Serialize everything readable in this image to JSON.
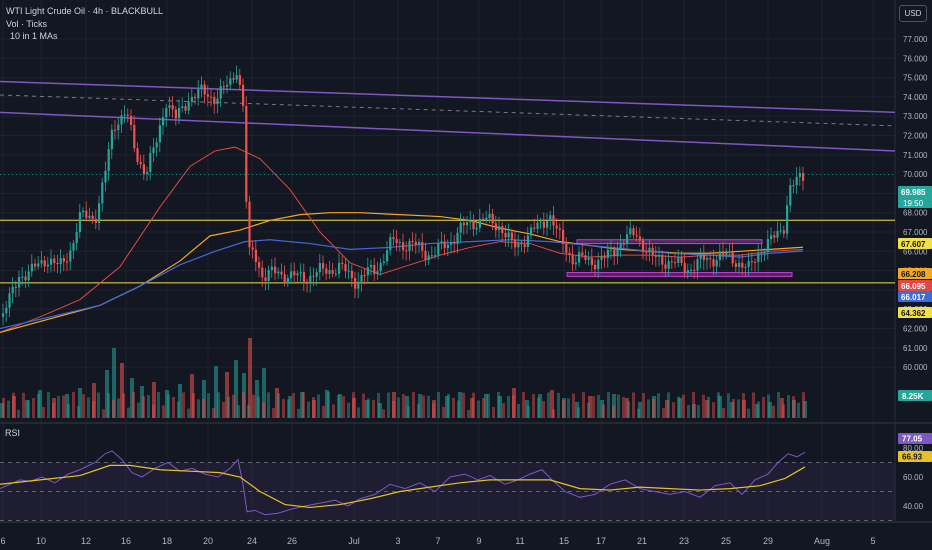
{
  "header": {
    "symbol": "WTI Light Crude Oil · 4h · BLACKBULL",
    "volume_label": "Vol · Ticks",
    "ma_label": "10 in 1 MAs",
    "rsi_label": "RSI",
    "currency": "USD"
  },
  "colors": {
    "background": "#131722",
    "up": "#26a69a",
    "down": "#ef5350",
    "trend": "#7e57c2",
    "level": "#f2e04a",
    "ma_red": "#e04848",
    "ma_orange": "#f5a623",
    "ma_blue": "#3f6bd8",
    "box": "#c040d0",
    "rsi": "#7e57c2",
    "rsi_ma": "#e6c229"
  },
  "chart_data": {
    "type": "candlestick",
    "price_axis": [
      "77.000",
      "76.000",
      "75.000",
      "74.000",
      "73.000",
      "72.000",
      "71.000",
      "70.000",
      "69.000",
      "68.000",
      "67.000",
      "66.000",
      "65.000",
      "64.000",
      "63.000",
      "62.000",
      "61.000",
      "60.000"
    ],
    "rsi_axis": [
      "80.00",
      "60.00",
      "40.00"
    ],
    "x_ticks": [
      "6",
      "10",
      "12",
      "16",
      "18",
      "20",
      "24",
      "26",
      "Jul",
      "3",
      "7",
      "9",
      "11",
      "15",
      "17",
      "21",
      "23",
      "25",
      "29",
      "Aug",
      "5"
    ],
    "price_range": [
      60,
      77.7
    ],
    "rsi_range": [
      32,
      82
    ],
    "path": [
      [
        0,
        62.6
      ],
      [
        10,
        63.6
      ],
      [
        18,
        64.8
      ],
      [
        30,
        64.9
      ],
      [
        45,
        65.7
      ],
      [
        58,
        65.1
      ],
      [
        70,
        66.2
      ],
      [
        80,
        67.8
      ],
      [
        96,
        67.9
      ],
      [
        106,
        70.5
      ],
      [
        112,
        72.6
      ],
      [
        125,
        73.2
      ],
      [
        135,
        71.0
      ],
      [
        145,
        70.1
      ],
      [
        155,
        71.5
      ],
      [
        165,
        73.9
      ],
      [
        175,
        72.8
      ],
      [
        188,
        74.0
      ],
      [
        200,
        74.2
      ],
      [
        215,
        74.0
      ],
      [
        228,
        74.6
      ],
      [
        236,
        75.6
      ],
      [
        242,
        73.5
      ],
      [
        247,
        65.7
      ],
      [
        253,
        66.0
      ],
      [
        262,
        64.7
      ],
      [
        278,
        64.9
      ],
      [
        298,
        64.6
      ],
      [
        318,
        64.9
      ],
      [
        337,
        65.2
      ],
      [
        355,
        64.5
      ],
      [
        375,
        65.1
      ],
      [
        392,
        66.5
      ],
      [
        412,
        66.3
      ],
      [
        432,
        65.8
      ],
      [
        452,
        66.7
      ],
      [
        468,
        67.5
      ],
      [
        483,
        67.6
      ],
      [
        498,
        67.4
      ],
      [
        512,
        66.2
      ],
      [
        527,
        66.8
      ],
      [
        540,
        67.4
      ],
      [
        548,
        68.0
      ],
      [
        557,
        66.8
      ],
      [
        572,
        65.6
      ],
      [
        590,
        65.5
      ],
      [
        605,
        65.6
      ],
      [
        620,
        66.5
      ],
      [
        635,
        66.9
      ],
      [
        652,
        65.6
      ],
      [
        668,
        65.5
      ],
      [
        685,
        65.1
      ],
      [
        702,
        65.5
      ],
      [
        720,
        65.8
      ],
      [
        737,
        65.5
      ],
      [
        748,
        65.0
      ],
      [
        760,
        66.2
      ],
      [
        775,
        66.7
      ],
      [
        783,
        67.4
      ],
      [
        788,
        69.3
      ],
      [
        797,
        69.6
      ],
      [
        805,
        69.985
      ]
    ],
    "volume": [
      {
        "x": 0,
        "v": 15
      },
      {
        "x": 12,
        "v": 22
      },
      {
        "x": 25,
        "v": 18
      },
      {
        "x": 38,
        "v": 28
      },
      {
        "x": 52,
        "v": 20
      },
      {
        "x": 65,
        "v": 24
      },
      {
        "x": 78,
        "v": 30
      },
      {
        "x": 92,
        "v": 35
      },
      {
        "x": 105,
        "v": 48
      },
      {
        "x": 112,
        "v": 70
      },
      {
        "x": 120,
        "v": 55
      },
      {
        "x": 130,
        "v": 40
      },
      {
        "x": 140,
        "v": 32
      },
      {
        "x": 152,
        "v": 36
      },
      {
        "x": 165,
        "v": 28
      },
      {
        "x": 178,
        "v": 34
      },
      {
        "x": 190,
        "v": 44
      },
      {
        "x": 202,
        "v": 38
      },
      {
        "x": 214,
        "v": 52
      },
      {
        "x": 225,
        "v": 46
      },
      {
        "x": 234,
        "v": 58
      },
      {
        "x": 242,
        "v": 45
      },
      {
        "x": 248,
        "v": 80
      },
      {
        "x": 255,
        "v": 38
      },
      {
        "x": 262,
        "v": 50
      },
      {
        "x": 275,
        "v": 30
      },
      {
        "x": 288,
        "v": 22
      },
      {
        "x": 300,
        "v": 26
      },
      {
        "x": 312,
        "v": 18
      },
      {
        "x": 325,
        "v": 28
      },
      {
        "x": 338,
        "v": 24
      },
      {
        "x": 352,
        "v": 20
      },
      {
        "x": 365,
        "v": 18
      },
      {
        "x": 378,
        "v": 15
      },
      {
        "x": 392,
        "v": 26
      },
      {
        "x": 405,
        "v": 22
      },
      {
        "x": 418,
        "v": 24
      },
      {
        "x": 432,
        "v": 18
      },
      {
        "x": 445,
        "v": 22
      },
      {
        "x": 458,
        "v": 26
      },
      {
        "x": 470,
        "v": 20
      },
      {
        "x": 484,
        "v": 24
      },
      {
        "x": 498,
        "v": 22
      },
      {
        "x": 512,
        "v": 30
      },
      {
        "x": 525,
        "v": 18
      },
      {
        "x": 538,
        "v": 24
      },
      {
        "x": 550,
        "v": 28
      },
      {
        "x": 562,
        "v": 20
      },
      {
        "x": 575,
        "v": 16
      },
      {
        "x": 588,
        "v": 22
      },
      {
        "x": 600,
        "v": 18
      },
      {
        "x": 612,
        "v": 24
      },
      {
        "x": 625,
        "v": 20
      },
      {
        "x": 638,
        "v": 16
      },
      {
        "x": 652,
        "v": 22
      },
      {
        "x": 665,
        "v": 18
      },
      {
        "x": 678,
        "v": 20
      },
      {
        "x": 692,
        "v": 14
      },
      {
        "x": 705,
        "v": 18
      },
      {
        "x": 718,
        "v": 22
      },
      {
        "x": 730,
        "v": 16
      },
      {
        "x": 742,
        "v": 18
      },
      {
        "x": 755,
        "v": 14
      },
      {
        "x": 768,
        "v": 16
      },
      {
        "x": 780,
        "v": 20
      },
      {
        "x": 792,
        "v": 18
      },
      {
        "x": 803,
        "v": 17
      }
    ],
    "ma_red": [
      [
        0,
        61.8
      ],
      [
        40,
        62.6
      ],
      [
        80,
        63.5
      ],
      [
        120,
        65.2
      ],
      [
        160,
        68.3
      ],
      [
        190,
        70.4
      ],
      [
        215,
        71.2
      ],
      [
        235,
        71.4
      ],
      [
        260,
        70.8
      ],
      [
        290,
        69.2
      ],
      [
        320,
        67.0
      ],
      [
        350,
        65.4
      ],
      [
        380,
        64.8
      ],
      [
        410,
        65.3
      ],
      [
        440,
        65.8
      ],
      [
        470,
        66.2
      ],
      [
        500,
        66.5
      ],
      [
        530,
        66.4
      ],
      [
        560,
        65.9
      ],
      [
        590,
        65.7
      ],
      [
        620,
        65.8
      ],
      [
        650,
        65.8
      ],
      [
        680,
        65.7
      ],
      [
        710,
        65.8
      ],
      [
        740,
        65.8
      ],
      [
        770,
        66.0
      ],
      [
        803,
        66.095
      ]
    ],
    "ma_orange": [
      [
        0,
        61.8
      ],
      [
        50,
        62.5
      ],
      [
        100,
        63.2
      ],
      [
        140,
        64.2
      ],
      [
        180,
        65.5
      ],
      [
        210,
        66.8
      ],
      [
        240,
        67.1
      ],
      [
        270,
        67.6
      ],
      [
        300,
        67.9
      ],
      [
        330,
        68.0
      ],
      [
        360,
        68.0
      ],
      [
        400,
        67.9
      ],
      [
        440,
        67.8
      ],
      [
        470,
        67.6
      ],
      [
        500,
        67.2
      ],
      [
        530,
        66.9
      ],
      [
        560,
        66.5
      ],
      [
        590,
        66.3
      ],
      [
        620,
        66.1
      ],
      [
        650,
        66.0
      ],
      [
        680,
        65.9
      ],
      [
        710,
        65.9
      ],
      [
        740,
        66.0
      ],
      [
        770,
        66.1
      ],
      [
        803,
        66.208
      ]
    ],
    "ma_blue": [
      [
        0,
        62.0
      ],
      [
        50,
        62.6
      ],
      [
        100,
        63.2
      ],
      [
        140,
        64.2
      ],
      [
        180,
        65.3
      ],
      [
        215,
        66.0
      ],
      [
        245,
        66.5
      ],
      [
        270,
        66.6
      ],
      [
        310,
        66.4
      ],
      [
        350,
        66.1
      ],
      [
        390,
        66.2
      ],
      [
        430,
        66.4
      ],
      [
        470,
        66.5
      ],
      [
        510,
        66.6
      ],
      [
        550,
        66.5
      ],
      [
        590,
        66.3
      ],
      [
        630,
        66.1
      ],
      [
        670,
        65.9
      ],
      [
        710,
        65.8
      ],
      [
        740,
        65.7
      ],
      [
        770,
        65.9
      ],
      [
        803,
        66.017
      ]
    ],
    "rsi": [
      [
        0,
        52
      ],
      [
        10,
        55
      ],
      [
        20,
        58
      ],
      [
        30,
        57
      ],
      [
        42,
        60
      ],
      [
        55,
        56
      ],
      [
        68,
        62
      ],
      [
        80,
        65
      ],
      [
        95,
        70
      ],
      [
        105,
        76
      ],
      [
        112,
        78
      ],
      [
        122,
        72
      ],
      [
        132,
        63
      ],
      [
        142,
        60
      ],
      [
        155,
        66
      ],
      [
        168,
        70
      ],
      [
        180,
        64
      ],
      [
        192,
        66
      ],
      [
        205,
        62
      ],
      [
        218,
        60
      ],
      [
        230,
        66
      ],
      [
        238,
        72
      ],
      [
        243,
        55
      ],
      [
        247,
        36
      ],
      [
        255,
        37
      ],
      [
        265,
        34
      ],
      [
        278,
        35
      ],
      [
        292,
        38
      ],
      [
        305,
        40
      ],
      [
        320,
        42
      ],
      [
        335,
        44
      ],
      [
        348,
        40
      ],
      [
        360,
        45
      ],
      [
        375,
        48
      ],
      [
        390,
        55
      ],
      [
        405,
        52
      ],
      [
        420,
        56
      ],
      [
        435,
        50
      ],
      [
        450,
        60
      ],
      [
        465,
        62
      ],
      [
        478,
        58
      ],
      [
        490,
        61
      ],
      [
        505,
        55
      ],
      [
        518,
        58
      ],
      [
        530,
        62
      ],
      [
        542,
        65
      ],
      [
        552,
        58
      ],
      [
        565,
        50
      ],
      [
        580,
        46
      ],
      [
        595,
        48
      ],
      [
        610,
        55
      ],
      [
        625,
        58
      ],
      [
        640,
        52
      ],
      [
        655,
        50
      ],
      [
        670,
        48
      ],
      [
        685,
        50
      ],
      [
        700,
        46
      ],
      [
        715,
        54
      ],
      [
        730,
        56
      ],
      [
        742,
        48
      ],
      [
        755,
        58
      ],
      [
        768,
        62
      ],
      [
        778,
        70
      ],
      [
        788,
        76
      ],
      [
        797,
        74
      ],
      [
        805,
        77.05
      ]
    ],
    "rsi_ma": [
      [
        0,
        55
      ],
      [
        40,
        58
      ],
      [
        80,
        61
      ],
      [
        110,
        68
      ],
      [
        130,
        68
      ],
      [
        160,
        65
      ],
      [
        190,
        64
      ],
      [
        220,
        63
      ],
      [
        240,
        60
      ],
      [
        260,
        50
      ],
      [
        285,
        41
      ],
      [
        310,
        39
      ],
      [
        340,
        41
      ],
      [
        370,
        45
      ],
      [
        400,
        50
      ],
      [
        430,
        53
      ],
      [
        460,
        56
      ],
      [
        490,
        58
      ],
      [
        520,
        58
      ],
      [
        550,
        58
      ],
      [
        580,
        52
      ],
      [
        610,
        51
      ],
      [
        640,
        53
      ],
      [
        670,
        52
      ],
      [
        700,
        51
      ],
      [
        730,
        52
      ],
      [
        760,
        54
      ],
      [
        785,
        59
      ],
      [
        805,
        66.93
      ]
    ],
    "trend_upper": [
      [
        0,
        74.8
      ],
      [
        895,
        73.2
      ]
    ],
    "trend_upper_dashed": [
      [
        0,
        74.1
      ],
      [
        895,
        72.5
      ]
    ],
    "trend_lower": [
      [
        0,
        73.2
      ],
      [
        895,
        71.2
      ]
    ],
    "levels": [
      67.607,
      64.362
    ],
    "boxes": [
      {
        "x0": 577,
        "x1": 762,
        "y0": 66.4,
        "y1": 66.6
      },
      {
        "x0": 567,
        "x1": 792,
        "y0": 64.7,
        "y1": 64.9
      }
    ],
    "labels": [
      {
        "text": "69.985",
        "value": 69.985,
        "color": "#26a69a",
        "sub": "19:50"
      },
      {
        "text": "67.607",
        "value": 67.607,
        "color": "#f2e04a"
      },
      {
        "text": "66.208",
        "value": 66.208,
        "color": "#f5a623"
      },
      {
        "text": "66.095",
        "value": 66.095,
        "color": "#e04848"
      },
      {
        "text": "66.017",
        "value": 66.017,
        "color": "#3f6bd8"
      },
      {
        "text": "64.362",
        "value": 64.362,
        "color": "#f2e04a"
      }
    ],
    "volume_label": {
      "text": "8.25K",
      "color": "#26a69a"
    },
    "rsi_labels": [
      {
        "text": "77.05",
        "value": 77.05,
        "color": "#7e57c2"
      },
      {
        "text": "66.93",
        "value": 66.93,
        "color": "#e6c229"
      }
    ]
  }
}
